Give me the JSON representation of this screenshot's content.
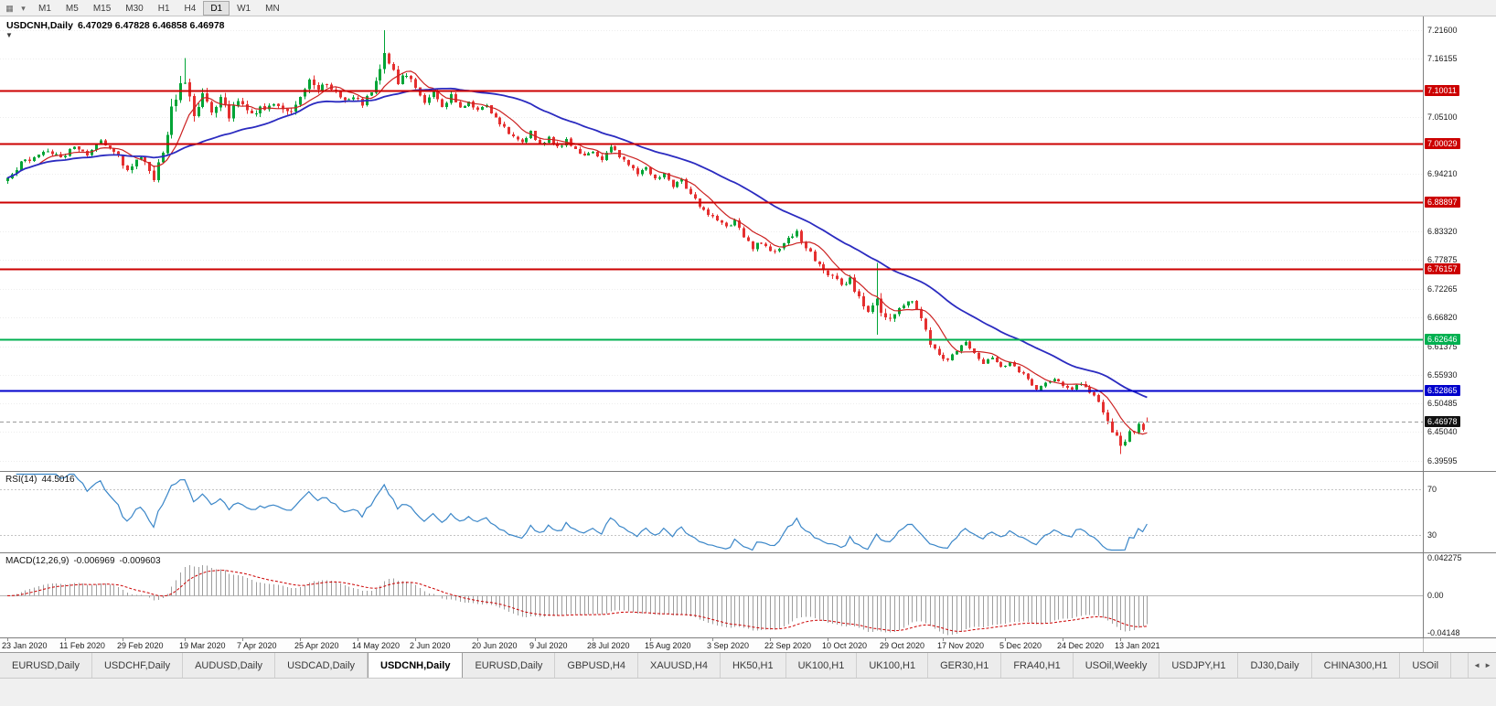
{
  "toolbar": {
    "icons": [
      {
        "name": "chart-window-icon",
        "glyph": "▦"
      },
      {
        "name": "caret-down-icon",
        "glyph": "▾"
      }
    ],
    "periods": [
      "M1",
      "M5",
      "M15",
      "M30",
      "H1",
      "H4",
      "D1",
      "W1",
      "MN"
    ],
    "active_period": "D1"
  },
  "chart": {
    "title": "USDCNH,Daily",
    "ohlc": "6.47029 6.47828 6.46858 6.46978",
    "one_click_glyph": "▼"
  },
  "chart_data": {
    "type": "candlestick",
    "symbol": "USDCNH",
    "timeframe": "Daily",
    "ohlc": {
      "open": 6.47029,
      "high": 6.47828,
      "low": 6.46858,
      "close": 6.46978
    },
    "price_range": {
      "min": 6.376,
      "max": 7.242
    },
    "y_ticks": [
      "7.21600",
      "7.16155",
      "7.05100",
      "6.94210",
      "6.83320",
      "6.77875",
      "6.72265",
      "6.66820",
      "6.61375",
      "6.55930",
      "6.50485",
      "6.45040",
      "6.39595"
    ],
    "levels": [
      {
        "label": "7.10011",
        "value": 7.10011,
        "color": "#cc0000",
        "width": 2
      },
      {
        "label": "7.00029",
        "value": 7.00029,
        "color": "#cc0000",
        "width": 2
      },
      {
        "label": "6.88897",
        "value": 6.88897,
        "color": "#cc0000",
        "width": 2
      },
      {
        "label": "6.76157",
        "value": 6.76157,
        "color": "#cc0000",
        "width": 2
      },
      {
        "label": "6.62646",
        "value": 6.62646,
        "color": "#00b050",
        "width": 2
      },
      {
        "label": "6.52865",
        "value": 6.52865,
        "color": "#0000cc",
        "width": 2
      }
    ],
    "current_price": 6.46978,
    "current_price_label": "6.46978",
    "x_dates": [
      "23 Jan 2020",
      "11 Feb 2020",
      "29 Feb 2020",
      "19 Mar 2020",
      "7 Apr 2020",
      "25 Apr 2020",
      "14 May 2020",
      "2 Jun 2020",
      "20 Jun 2020",
      "9 Jul 2020",
      "28 Jul 2020",
      "15 Aug 2020",
      "3 Sep 2020",
      "22 Sep 2020",
      "10 Oct 2020",
      "29 Oct 2020",
      "17 Nov 2020",
      "5 Dec 2020",
      "24 Dec 2020",
      "13 Jan 2021"
    ],
    "bars": 258,
    "colors": {
      "up": "#00a436",
      "down": "#e53030"
    },
    "moving_averages": [
      {
        "period": 8,
        "color": "#cc2222",
        "width": 1.2
      },
      {
        "period": 34,
        "color": "#2b2bc0",
        "width": 1.8
      }
    ],
    "close_anchors": [
      [
        0,
        6.93
      ],
      [
        3,
        6.962
      ],
      [
        6,
        6.975
      ],
      [
        9,
        6.988
      ],
      [
        12,
        6.972
      ],
      [
        15,
        6.996
      ],
      [
        18,
        6.98
      ],
      [
        21,
        7.005
      ],
      [
        24,
        6.985
      ],
      [
        27,
        6.952
      ],
      [
        30,
        6.974
      ],
      [
        33,
        6.94
      ],
      [
        36,
        7.02
      ],
      [
        38,
        7.095
      ],
      [
        40,
        7.115
      ],
      [
        42,
        7.055
      ],
      [
        44,
        7.1
      ],
      [
        46,
        7.062
      ],
      [
        48,
        7.092
      ],
      [
        50,
        7.055
      ],
      [
        52,
        7.08
      ],
      [
        55,
        7.058
      ],
      [
        58,
        7.068
      ],
      [
        61,
        7.075
      ],
      [
        64,
        7.06
      ],
      [
        66,
        7.092
      ],
      [
        68,
        7.125
      ],
      [
        70,
        7.1
      ],
      [
        72,
        7.118
      ],
      [
        74,
        7.098
      ],
      [
        76,
        7.082
      ],
      [
        78,
        7.092
      ],
      [
        80,
        7.072
      ],
      [
        82,
        7.1
      ],
      [
        84,
        7.135
      ],
      [
        85,
        7.168
      ],
      [
        86,
        7.15
      ],
      [
        88,
        7.118
      ],
      [
        90,
        7.13
      ],
      [
        92,
        7.108
      ],
      [
        94,
        7.082
      ],
      [
        96,
        7.1
      ],
      [
        98,
        7.072
      ],
      [
        100,
        7.09
      ],
      [
        102,
        7.068
      ],
      [
        104,
        7.082
      ],
      [
        106,
        7.06
      ],
      [
        108,
        7.072
      ],
      [
        110,
        7.05
      ],
      [
        112,
        7.03
      ],
      [
        114,
        7.012
      ],
      [
        116,
        7.002
      ],
      [
        118,
        7.022
      ],
      [
        120,
        6.998
      ],
      [
        122,
        7.012
      ],
      [
        124,
        6.992
      ],
      [
        126,
        7.006
      ],
      [
        128,
        6.99
      ],
      [
        130,
        6.976
      ],
      [
        132,
        6.986
      ],
      [
        134,
        6.97
      ],
      [
        136,
        6.996
      ],
      [
        138,
        6.976
      ],
      [
        140,
        6.96
      ],
      [
        142,
        6.942
      ],
      [
        144,
        6.952
      ],
      [
        146,
        6.93
      ],
      [
        148,
        6.945
      ],
      [
        150,
        6.92
      ],
      [
        152,
        6.931
      ],
      [
        154,
        6.902
      ],
      [
        156,
        6.882
      ],
      [
        158,
        6.866
      ],
      [
        160,
        6.85
      ],
      [
        162,
        6.84
      ],
      [
        164,
        6.852
      ],
      [
        166,
        6.822
      ],
      [
        168,
        6.802
      ],
      [
        170,
        6.812
      ],
      [
        172,
        6.792
      ],
      [
        174,
        6.802
      ],
      [
        176,
        6.818
      ],
      [
        178,
        6.832
      ],
      [
        180,
        6.8
      ],
      [
        182,
        6.78
      ],
      [
        184,
        6.762
      ],
      [
        186,
        6.746
      ],
      [
        188,
        6.732
      ],
      [
        190,
        6.742
      ],
      [
        192,
        6.702
      ],
      [
        194,
        6.682
      ],
      [
        196,
        6.702
      ],
      [
        198,
        6.662
      ],
      [
        200,
        6.676
      ],
      [
        202,
        6.692
      ],
      [
        204,
        6.702
      ],
      [
        206,
        6.666
      ],
      [
        208,
        6.622
      ],
      [
        210,
        6.602
      ],
      [
        212,
        6.586
      ],
      [
        214,
        6.602
      ],
      [
        216,
        6.622
      ],
      [
        218,
        6.602
      ],
      [
        220,
        6.582
      ],
      [
        222,
        6.592
      ],
      [
        224,
        6.576
      ],
      [
        226,
        6.582
      ],
      [
        228,
        6.566
      ],
      [
        230,
        6.552
      ],
      [
        232,
        6.532
      ],
      [
        234,
        6.542
      ],
      [
        236,
        6.552
      ],
      [
        238,
        6.536
      ],
      [
        240,
        6.532
      ],
      [
        242,
        6.542
      ],
      [
        244,
        6.526
      ],
      [
        246,
        6.512
      ],
      [
        248,
        6.472
      ],
      [
        250,
        6.438
      ],
      [
        251,
        6.418
      ],
      [
        252,
        6.432
      ],
      [
        253,
        6.452
      ],
      [
        254,
        6.445
      ],
      [
        255,
        6.462
      ],
      [
        256,
        6.455
      ],
      [
        257,
        6.47
      ]
    ],
    "vol_anchors": [
      [
        0,
        0.01
      ],
      [
        20,
        0.01
      ],
      [
        30,
        0.013
      ],
      [
        36,
        0.03
      ],
      [
        44,
        0.024
      ],
      [
        52,
        0.014
      ],
      [
        64,
        0.013
      ],
      [
        68,
        0.016
      ],
      [
        80,
        0.01
      ],
      [
        85,
        0.022
      ],
      [
        90,
        0.012
      ],
      [
        100,
        0.009
      ],
      [
        120,
        0.008
      ],
      [
        150,
        0.008
      ],
      [
        170,
        0.009
      ],
      [
        190,
        0.012
      ],
      [
        196,
        0.02
      ],
      [
        202,
        0.009
      ],
      [
        208,
        0.013
      ],
      [
        220,
        0.007
      ],
      [
        235,
        0.006
      ],
      [
        246,
        0.011
      ],
      [
        251,
        0.015
      ],
      [
        257,
        0.006
      ]
    ],
    "overrides": [
      {
        "i": 40,
        "h": 7.163
      },
      {
        "i": 85,
        "h": 7.216
      },
      {
        "i": 196,
        "h": 6.772,
        "l": 6.636
      },
      {
        "i": 251,
        "l": 6.408
      },
      {
        "i": 257,
        "o": 6.47029,
        "h": 6.47828,
        "l": 6.46858,
        "c": 6.46978
      }
    ],
    "rsi": {
      "label": "RSI(14)",
      "value": "44.5016",
      "color": "#3a86c8",
      "levels": [
        70,
        30
      ],
      "range": [
        15,
        85
      ]
    },
    "macd": {
      "label": "MACD(12,26,9)",
      "value_main": "-0.006969",
      "value_signal": "-0.009603",
      "axis": [
        "0.042275",
        "0.00",
        "-0.04148"
      ],
      "range": {
        "max": 0.0442,
        "min": -0.0434
      },
      "histogram_color": "#9e9e9e",
      "signal_color": "#cc0000"
    }
  },
  "tabbar": {
    "tabs": [
      "EURUSD,Daily",
      "USDCHF,Daily",
      "AUDUSD,Daily",
      "USDCAD,Daily",
      "USDCNH,Daily",
      "EURUSD,Daily",
      "GBPUSD,H4",
      "XAUUSD,H4",
      "HK50,H1",
      "UK100,H1",
      "UK100,H1",
      "GER30,H1",
      "FRA40,H1",
      "USOil,Weekly",
      "USDJPY,H1",
      "DJ30,Daily",
      "CHINA300,H1",
      "USOil"
    ],
    "active_index": 4,
    "scroll_icons": [
      {
        "name": "tab-scroll-left-icon",
        "glyph": "◄"
      },
      {
        "name": "tab-scroll-right-icon",
        "glyph": "►"
      }
    ]
  }
}
